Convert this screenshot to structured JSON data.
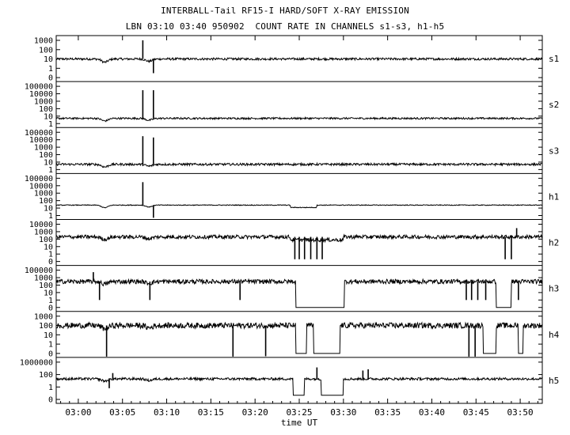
{
  "chart_data": {
    "type": "line",
    "title": "INTERBALL-Tail RF15-I HARD/SOFT X-RAY EMISSION",
    "subtitle": "LBN 03:10 03:40 950902  COUNT RATE IN CHANNELS s1-s3, h1-h5",
    "xlabel": "time UT",
    "x_ticks": [
      "03:00",
      "03:05",
      "03:10",
      "03:15",
      "03:20",
      "03:25",
      "03:30",
      "03:35",
      "03:40",
      "03:45",
      "03:50"
    ],
    "x_range_minutes": [
      -2.5,
      52.5
    ],
    "y_scale": "log",
    "grid": false,
    "panels": [
      {
        "name": "s1",
        "y_ticks": [
          "1000",
          "100",
          "10",
          "1",
          "0"
        ],
        "baseline": 10,
        "noise_decades": 0.12,
        "segments": [],
        "spikes": [
          {
            "t": 7.3,
            "value": 1000
          },
          {
            "t": 8.5,
            "value": 0.3
          }
        ]
      },
      {
        "name": "s2",
        "y_ticks": [
          "100000",
          "10000",
          "1000",
          "100",
          "10",
          "1"
        ],
        "baseline": 5,
        "noise_decades": 0.12,
        "segments": [],
        "spikes": [
          {
            "t": 7.3,
            "value": 30000
          },
          {
            "t": 8.5,
            "value": 30000
          }
        ]
      },
      {
        "name": "s3",
        "y_ticks": [
          "100000",
          "10000",
          "1000",
          "100",
          "10",
          "1"
        ],
        "baseline": 5,
        "noise_decades": 0.15,
        "segments": [],
        "spikes": [
          {
            "t": 7.3,
            "value": 30000
          },
          {
            "t": 8.5,
            "value": 20000
          }
        ]
      },
      {
        "name": "h1",
        "y_ticks": [
          "100000",
          "10000",
          "1000",
          "100",
          "10",
          "1"
        ],
        "baseline": 25,
        "noise_decades": 0.05,
        "segments": [
          {
            "from": 24.0,
            "to": 27.0,
            "value": 12
          }
        ],
        "spikes": [
          {
            "t": 7.3,
            "value": 30000
          },
          {
            "t": 8.5,
            "value": 0.5
          }
        ]
      },
      {
        "name": "h2",
        "y_ticks": [
          "10000",
          "1000",
          "100",
          "10",
          "1",
          "0"
        ],
        "baseline": 200,
        "noise_decades": 0.25,
        "segments": [
          {
            "from": 24.0,
            "to": 30.0,
            "value": 80
          }
        ],
        "spikes": [
          {
            "t": 24.5,
            "value": 0.2
          },
          {
            "t": 25.0,
            "value": 0.2
          },
          {
            "t": 25.6,
            "value": 0.2
          },
          {
            "t": 26.3,
            "value": 0.2
          },
          {
            "t": 27.0,
            "value": 0.2
          },
          {
            "t": 27.6,
            "value": 0.2
          },
          {
            "t": 48.3,
            "value": 0.2
          },
          {
            "t": 49.0,
            "value": 0.2
          },
          {
            "t": 49.6,
            "value": 3000
          }
        ]
      },
      {
        "name": "h3",
        "y_ticks": [
          "100000",
          "1000",
          "100",
          "10",
          "1",
          "0"
        ],
        "baseline": 300,
        "noise_decades": 0.3,
        "segments": [
          {
            "from": 24.6,
            "to": 30.1,
            "value": 0.001
          },
          {
            "from": 47.3,
            "to": 49.0,
            "value": 0.001
          }
        ],
        "spikes": [
          {
            "t": 1.7,
            "value": 30000
          },
          {
            "t": 2.4,
            "value": 1
          },
          {
            "t": 8.1,
            "value": 1
          },
          {
            "t": 18.3,
            "value": 1
          },
          {
            "t": 43.9,
            "value": 1
          },
          {
            "t": 44.5,
            "value": 1
          },
          {
            "t": 45.2,
            "value": 1
          },
          {
            "t": 46.1,
            "value": 1
          },
          {
            "t": 49.8,
            "value": 1
          }
        ]
      },
      {
        "name": "h4",
        "y_ticks": [
          "1000",
          "100",
          "10",
          "1",
          "0"
        ],
        "baseline": 100,
        "noise_decades": 0.3,
        "segments": [
          {
            "from": 24.6,
            "to": 25.8,
            "value": 0.001
          },
          {
            "from": 26.6,
            "to": 29.6,
            "value": 0.001
          },
          {
            "from": 45.8,
            "to": 47.3,
            "value": 0.001
          },
          {
            "from": 49.8,
            "to": 50.3,
            "value": 0.001
          }
        ],
        "spikes": [
          {
            "t": 3.2,
            "value": 0.01
          },
          {
            "t": 17.5,
            "value": 0.01
          },
          {
            "t": 21.2,
            "value": 0.05
          },
          {
            "t": 44.2,
            "value": 0.01
          },
          {
            "t": 44.9,
            "value": 0.01
          }
        ]
      },
      {
        "name": "h5",
        "y_ticks": [
          "1000000",
          "100",
          "1",
          "0"
        ],
        "baseline": 20,
        "noise_decades": 0.2,
        "segments": [
          {
            "from": 24.3,
            "to": 25.6,
            "value": 0.01
          },
          {
            "from": 27.5,
            "to": 30.0,
            "value": 0.01
          }
        ],
        "spikes": [
          {
            "t": 3.5,
            "value": 0.5
          },
          {
            "t": 3.9,
            "value": 300
          },
          {
            "t": 27.0,
            "value": 20000
          },
          {
            "t": 32.2,
            "value": 2000
          },
          {
            "t": 32.8,
            "value": 5000
          }
        ]
      }
    ]
  }
}
